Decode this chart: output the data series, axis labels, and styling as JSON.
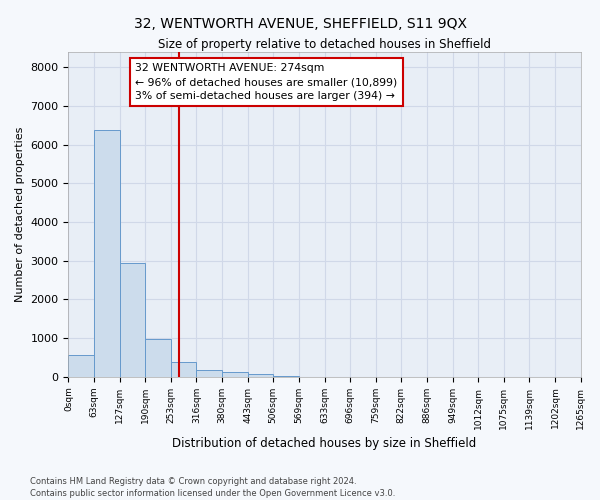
{
  "title": "32, WENTWORTH AVENUE, SHEFFIELD, S11 9QX",
  "subtitle": "Size of property relative to detached houses in Sheffield",
  "xlabel": "Distribution of detached houses by size in Sheffield",
  "ylabel": "Number of detached properties",
  "bar_color": "#ccdcec",
  "bar_edge_color": "#6699cc",
  "bar_heights": [
    560,
    6380,
    2940,
    970,
    370,
    165,
    115,
    80,
    20,
    8,
    4,
    2,
    1,
    1,
    0,
    0,
    0,
    0,
    0,
    0
  ],
  "bin_edges": [
    0,
    63,
    127,
    190,
    253,
    316,
    380,
    443,
    506,
    569,
    633,
    696,
    759,
    822,
    886,
    949,
    1012,
    1075,
    1139,
    1202,
    1265
  ],
  "x_tick_labels": [
    "0sqm",
    "63sqm",
    "127sqm",
    "190sqm",
    "253sqm",
    "316sqm",
    "380sqm",
    "443sqm",
    "506sqm",
    "569sqm",
    "633sqm",
    "696sqm",
    "759sqm",
    "822sqm",
    "886sqm",
    "949sqm",
    "1012sqm",
    "1075sqm",
    "1139sqm",
    "1202sqm",
    "1265sqm"
  ],
  "ylim": [
    0,
    8400
  ],
  "yticks": [
    0,
    1000,
    2000,
    3000,
    4000,
    5000,
    6000,
    7000,
    8000
  ],
  "property_line_x": 274,
  "property_line_color": "#cc0000",
  "annotation_text_line1": "32 WENTWORTH AVENUE: 274sqm",
  "annotation_text_line2": "← 96% of detached houses are smaller (10,899)",
  "annotation_text_line3": "3% of semi-detached houses are larger (394) →",
  "annotation_box_color": "#ffffff",
  "annotation_box_edge": "#cc0000",
  "footer_line1": "Contains HM Land Registry data © Crown copyright and database right 2024.",
  "footer_line2": "Contains public sector information licensed under the Open Government Licence v3.0.",
  "background_color": "#f5f8fc",
  "grid_color": "#d0d8e8",
  "plot_bg_color": "#e8eef6"
}
